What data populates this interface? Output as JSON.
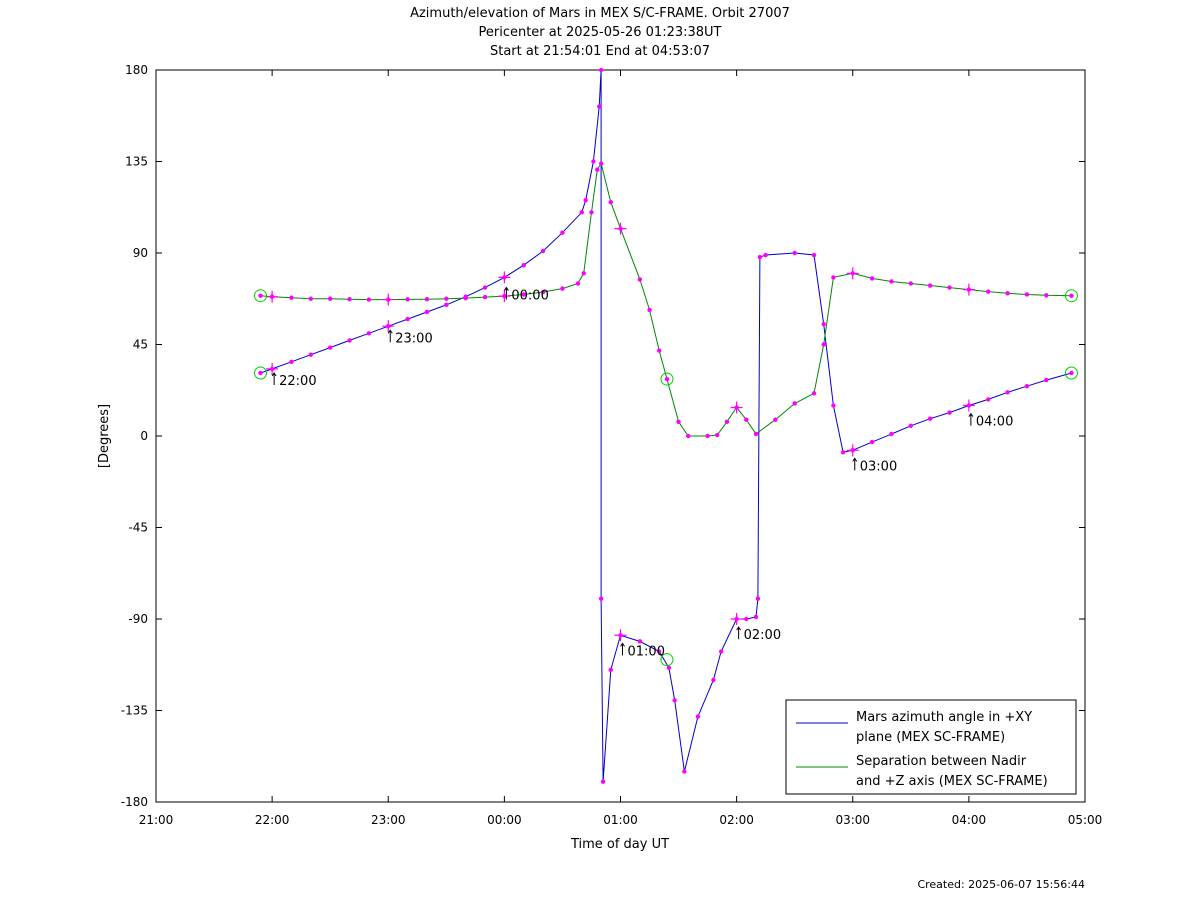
{
  "chart_data": {
    "type": "line",
    "title": "Azimuth/elevation of Mars in MEX S/C-FRAME.  Orbit 27007",
    "subtitle_lines": [
      "Pericenter at 2025-05-26 01:23:38UT",
      "Start at 21:54:01 End at 04:53:07"
    ],
    "xlabel": "Time of day UT",
    "ylabel": "[Degrees]",
    "xlim": [
      "21:00",
      "05:00"
    ],
    "ylim": [
      -180,
      180
    ],
    "x_ticks": [
      "21:00",
      "22:00",
      "23:00",
      "00:00",
      "01:00",
      "02:00",
      "03:00",
      "04:00",
      "05:00"
    ],
    "y_ticks": [
      "180",
      "135",
      "90",
      "45",
      "0",
      "-45",
      "-90",
      "-135",
      "-180"
    ],
    "grid": false,
    "legend_position": "bottom-right",
    "series": [
      {
        "name": "Mars azimuth angle in +XY plane (MEX SC-FRAME)",
        "color": "#0000cc",
        "points": [
          [
            "21:54",
            31
          ],
          [
            "22:00",
            33
          ],
          [
            "22:10",
            36.5
          ],
          [
            "22:20",
            40
          ],
          [
            "22:30",
            43.5
          ],
          [
            "22:40",
            47
          ],
          [
            "22:50",
            50.5
          ],
          [
            "23:00",
            54
          ],
          [
            "23:10",
            57.5
          ],
          [
            "23:20",
            61
          ],
          [
            "23:30",
            64.5
          ],
          [
            "23:40",
            68.5
          ],
          [
            "23:50",
            73
          ],
          [
            "00:00",
            78
          ],
          [
            "00:10",
            84
          ],
          [
            "00:20",
            91
          ],
          [
            "00:30",
            100
          ],
          [
            "00:40",
            110
          ],
          [
            "00:42",
            116
          ],
          [
            "00:46",
            135
          ],
          [
            "00:49",
            162
          ],
          [
            "00:50",
            180
          ],
          [
            "00:50",
            -80
          ],
          [
            "00:51",
            -170
          ],
          [
            "00:55",
            -115
          ],
          [
            "01:00",
            -98
          ],
          [
            "01:10",
            -101
          ],
          [
            "01:20",
            -106
          ],
          [
            "01:25",
            -114
          ],
          [
            "01:28",
            -130
          ],
          [
            "01:33",
            -165
          ],
          [
            "01:40",
            -138
          ],
          [
            "01:48",
            -120
          ],
          [
            "01:52",
            -106
          ],
          [
            "02:00",
            -90
          ],
          [
            "02:05",
            -90
          ],
          [
            "02:10",
            -89
          ],
          [
            "02:11",
            -80
          ],
          [
            "02:12",
            88
          ],
          [
            "02:15",
            89
          ],
          [
            "02:30",
            90
          ],
          [
            "02:40",
            89
          ],
          [
            "02:45",
            55
          ],
          [
            "02:50",
            15
          ],
          [
            "02:55",
            -8
          ],
          [
            "03:00",
            -7
          ],
          [
            "03:10",
            -3
          ],
          [
            "03:20",
            1
          ],
          [
            "03:30",
            5
          ],
          [
            "03:40",
            8.5
          ],
          [
            "03:50",
            11.5
          ],
          [
            "04:00",
            15
          ],
          [
            "04:10",
            18
          ],
          [
            "04:20",
            21.5
          ],
          [
            "04:30",
            24.5
          ],
          [
            "04:40",
            27.5
          ],
          [
            "04:53",
            31
          ]
        ]
      },
      {
        "name": "Separation between Nadir and +Z axis (MEX SC-FRAME)",
        "color": "#008800",
        "points": [
          [
            "21:54",
            69
          ],
          [
            "22:00",
            68.5
          ],
          [
            "22:10",
            68
          ],
          [
            "22:20",
            67.5
          ],
          [
            "22:30",
            67.5
          ],
          [
            "22:40",
            67.3
          ],
          [
            "22:50",
            67.1
          ],
          [
            "23:00",
            67.1
          ],
          [
            "23:10",
            67.2
          ],
          [
            "23:20",
            67.3
          ],
          [
            "23:30",
            67.5
          ],
          [
            "23:40",
            67.8
          ],
          [
            "23:50",
            68.3
          ],
          [
            "00:00",
            68.8
          ],
          [
            "00:10",
            69.6
          ],
          [
            "00:20",
            70.8
          ],
          [
            "00:30",
            72.5
          ],
          [
            "00:38",
            75
          ],
          [
            "00:41",
            80
          ],
          [
            "00:45",
            110
          ],
          [
            "00:48",
            131
          ],
          [
            "00:50",
            134
          ],
          [
            "00:55",
            115
          ],
          [
            "01:00",
            102
          ],
          [
            "01:10",
            77
          ],
          [
            "01:15",
            62
          ],
          [
            "01:20",
            42
          ],
          [
            "01:24",
            28
          ],
          [
            "01:30",
            7
          ],
          [
            "01:35",
            0
          ],
          [
            "01:45",
            0
          ],
          [
            "01:50",
            0.5
          ],
          [
            "01:55",
            7
          ],
          [
            "02:00",
            14
          ],
          [
            "02:05",
            8
          ],
          [
            "02:10",
            1
          ],
          [
            "02:20",
            8
          ],
          [
            "02:30",
            16
          ],
          [
            "02:40",
            21
          ],
          [
            "02:45",
            45
          ],
          [
            "02:50",
            78
          ],
          [
            "03:00",
            80
          ],
          [
            "03:10",
            77.5
          ],
          [
            "03:20",
            76
          ],
          [
            "03:30",
            75
          ],
          [
            "03:40",
            74
          ],
          [
            "03:50",
            73
          ],
          [
            "04:00",
            72
          ],
          [
            "04:10",
            71
          ],
          [
            "04:20",
            70.2
          ],
          [
            "04:30",
            69.6
          ],
          [
            "04:40",
            69.2
          ],
          [
            "04:53",
            69
          ]
        ]
      }
    ],
    "annotations": [
      {
        "text": "22:00",
        "x": "22:00",
        "y": 31
      },
      {
        "text": "23:00",
        "x": "23:00",
        "y": 52
      },
      {
        "text": "00:00",
        "x": "00:00",
        "y": 73
      },
      {
        "text": "01:00",
        "x": "01:00",
        "y": -102
      },
      {
        "text": "02:00",
        "x": "02:00",
        "y": -94
      },
      {
        "text": "03:00",
        "x": "03:00",
        "y": -11
      },
      {
        "text": "04:00",
        "x": "04:00",
        "y": 11
      }
    ],
    "hour_crosses": [
      [
        "22:00",
        33
      ],
      [
        "23:00",
        54
      ],
      [
        "00:00",
        78
      ],
      [
        "01:00",
        -98
      ],
      [
        "02:00",
        -90
      ],
      [
        "03:00",
        -7
      ],
      [
        "04:00",
        15
      ],
      [
        "22:00",
        68.5
      ],
      [
        "23:00",
        67.1
      ],
      [
        "00:00",
        68.8
      ],
      [
        "01:00",
        102
      ],
      [
        "02:00",
        14
      ],
      [
        "03:00",
        80
      ],
      [
        "04:00",
        72
      ]
    ],
    "circle_markers": [
      [
        "21:54",
        31
      ],
      [
        "21:54",
        69
      ],
      [
        "04:53",
        31
      ],
      [
        "04:53",
        69
      ],
      [
        "01:24",
        28
      ],
      [
        "01:24",
        -110
      ]
    ],
    "marker_colors": {
      "dots": "#ff00ff",
      "circles": "#00cc00"
    }
  },
  "footer": {
    "created": "Created: 2025-06-07 15:56:44"
  }
}
